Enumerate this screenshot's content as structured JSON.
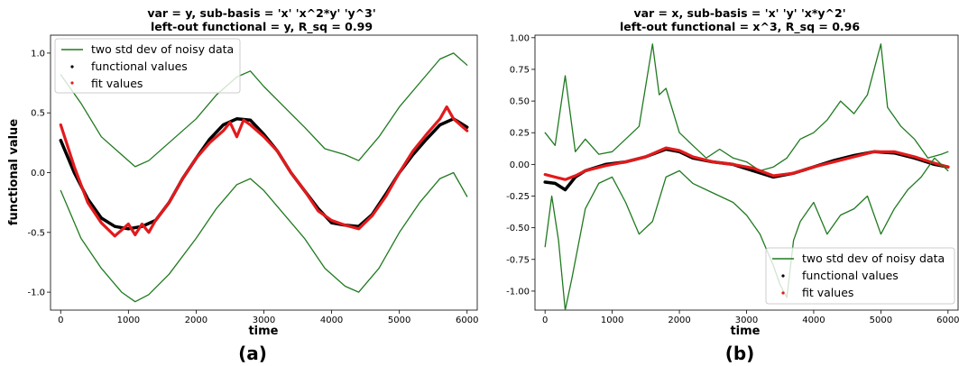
{
  "chart_data": [
    {
      "type": "line",
      "panel_label": "(a)",
      "title": "var = y, sub-basis = 'x' 'x^2*y' 'y^3'",
      "subtitle": "left-out functional = y, R_sq = 0.99",
      "xlabel": "time",
      "ylabel": "functional value",
      "xlim": [
        -150,
        6150
      ],
      "ylim": [
        -1.15,
        1.15
      ],
      "xticks": [
        "0",
        "1000",
        "2000",
        "3000",
        "4000",
        "5000",
        "6000"
      ],
      "yticks": [
        "-1.0",
        "-0.5",
        "0.0",
        "0.5",
        "1.0"
      ],
      "legend_position": "top-left",
      "legend": [
        "two std dev of noisy data",
        "functional values",
        "fit values"
      ],
      "colors": {
        "band": "#1f7a1f",
        "functional": "#000000",
        "fit": "#e31a1c"
      },
      "series": [
        {
          "name": "two std dev of noisy data",
          "role": "upper",
          "x": [
            0,
            300,
            600,
            900,
            1100,
            1300,
            1600,
            2000,
            2300,
            2600,
            2800,
            3000,
            3300,
            3600,
            3900,
            4200,
            4400,
            4700,
            5000,
            5300,
            5600,
            5800,
            6000
          ],
          "y": [
            0.82,
            0.58,
            0.3,
            0.15,
            0.05,
            0.1,
            0.25,
            0.45,
            0.65,
            0.8,
            0.85,
            0.72,
            0.55,
            0.38,
            0.2,
            0.15,
            0.1,
            0.3,
            0.55,
            0.75,
            0.95,
            1.0,
            0.9
          ]
        },
        {
          "name": "functional values",
          "role": "center",
          "x": [
            0,
            200,
            400,
            600,
            800,
            1000,
            1200,
            1400,
            1600,
            1800,
            2000,
            2200,
            2400,
            2600,
            2800,
            3000,
            3200,
            3400,
            3600,
            3800,
            4000,
            4200,
            4400,
            4600,
            4800,
            5000,
            5200,
            5400,
            5600,
            5800,
            6000
          ],
          "y": [
            0.27,
            0.0,
            -0.22,
            -0.38,
            -0.45,
            -0.47,
            -0.45,
            -0.4,
            -0.25,
            -0.05,
            0.12,
            0.28,
            0.4,
            0.45,
            0.44,
            0.32,
            0.18,
            0.0,
            -0.15,
            -0.3,
            -0.42,
            -0.44,
            -0.45,
            -0.35,
            -0.18,
            0.0,
            0.15,
            0.28,
            0.4,
            0.45,
            0.38
          ]
        },
        {
          "name": "fit values",
          "role": "center",
          "x": [
            0,
            200,
            400,
            600,
            800,
            900,
            1000,
            1100,
            1200,
            1300,
            1400,
            1600,
            1800,
            2000,
            2200,
            2400,
            2500,
            2600,
            2700,
            2800,
            3000,
            3200,
            3400,
            3600,
            3800,
            4000,
            4200,
            4400,
            4600,
            4800,
            5000,
            5200,
            5400,
            5600,
            5700,
            5800,
            6000
          ],
          "y": [
            0.4,
            0.05,
            -0.25,
            -0.42,
            -0.53,
            -0.48,
            -0.43,
            -0.52,
            -0.43,
            -0.5,
            -0.4,
            -0.25,
            -0.05,
            0.12,
            0.25,
            0.35,
            0.42,
            0.3,
            0.44,
            0.4,
            0.3,
            0.18,
            0.0,
            -0.15,
            -0.32,
            -0.4,
            -0.44,
            -0.47,
            -0.36,
            -0.2,
            0.0,
            0.18,
            0.32,
            0.45,
            0.55,
            0.45,
            0.35
          ]
        },
        {
          "name": "two std dev of noisy data",
          "role": "lower",
          "x": [
            0,
            300,
            600,
            900,
            1100,
            1300,
            1600,
            2000,
            2300,
            2600,
            2800,
            3000,
            3300,
            3600,
            3900,
            4200,
            4400,
            4700,
            5000,
            5300,
            5600,
            5800,
            6000
          ],
          "y": [
            -0.15,
            -0.55,
            -0.8,
            -1.0,
            -1.08,
            -1.02,
            -0.85,
            -0.55,
            -0.3,
            -0.1,
            -0.05,
            -0.15,
            -0.35,
            -0.55,
            -0.8,
            -0.95,
            -1.0,
            -0.8,
            -0.5,
            -0.25,
            -0.05,
            0.0,
            -0.2
          ]
        }
      ]
    },
    {
      "type": "line",
      "panel_label": "(b)",
      "title": "var = x, sub-basis = 'x' 'y' 'x*y^2'",
      "subtitle": "left-out functional = x^3, R_sq = 0.96",
      "xlabel": "time",
      "ylabel": "",
      "xlim": [
        -150,
        6150
      ],
      "ylim": [
        -1.15,
        1.02
      ],
      "xticks": [
        "0",
        "1000",
        "2000",
        "3000",
        "4000",
        "5000",
        "6000"
      ],
      "yticks": [
        "-1.00",
        "-0.75",
        "-0.50",
        "-0.25",
        "0.00",
        "0.25",
        "0.50",
        "0.75",
        "1.00"
      ],
      "legend_position": "bottom-right",
      "legend": [
        "two std dev of noisy data",
        "functional values",
        "fit values"
      ],
      "colors": {
        "band": "#1f7a1f",
        "functional": "#000000",
        "fit": "#e31a1c"
      },
      "series": [
        {
          "name": "two std dev of noisy data",
          "role": "upper",
          "x": [
            0,
            150,
            300,
            450,
            600,
            800,
            1000,
            1200,
            1400,
            1600,
            1700,
            1800,
            2000,
            2200,
            2400,
            2600,
            2800,
            3000,
            3200,
            3400,
            3600,
            3800,
            4000,
            4200,
            4400,
            4600,
            4800,
            5000,
            5100,
            5300,
            5500,
            5700,
            5900,
            6000
          ],
          "y": [
            0.25,
            0.15,
            0.7,
            0.1,
            0.2,
            0.08,
            0.1,
            0.2,
            0.3,
            0.95,
            0.55,
            0.6,
            0.25,
            0.15,
            0.05,
            0.12,
            0.05,
            0.02,
            -0.05,
            -0.02,
            0.05,
            0.2,
            0.25,
            0.35,
            0.5,
            0.4,
            0.55,
            0.95,
            0.45,
            0.3,
            0.2,
            0.05,
            0.08,
            0.1
          ]
        },
        {
          "name": "functional values",
          "role": "center",
          "x": [
            0,
            150,
            300,
            450,
            600,
            900,
            1200,
            1500,
            1800,
            2000,
            2200,
            2500,
            2800,
            3100,
            3400,
            3700,
            4000,
            4300,
            4600,
            4900,
            5200,
            5500,
            5800,
            6000
          ],
          "y": [
            -0.14,
            -0.15,
            -0.2,
            -0.1,
            -0.05,
            0.0,
            0.02,
            0.06,
            0.12,
            0.1,
            0.05,
            0.02,
            0.0,
            -0.05,
            -0.1,
            -0.07,
            -0.02,
            0.03,
            0.07,
            0.1,
            0.09,
            0.05,
            0.0,
            -0.02
          ]
        },
        {
          "name": "fit values",
          "role": "center",
          "x": [
            0,
            150,
            300,
            450,
            600,
            900,
            1200,
            1500,
            1800,
            2000,
            2200,
            2500,
            2800,
            3100,
            3400,
            3700,
            4000,
            4300,
            4600,
            4900,
            5200,
            5500,
            5800,
            6000
          ],
          "y": [
            -0.08,
            -0.1,
            -0.12,
            -0.09,
            -0.05,
            -0.01,
            0.02,
            0.06,
            0.13,
            0.11,
            0.06,
            0.02,
            0.0,
            -0.03,
            -0.09,
            -0.07,
            -0.02,
            0.02,
            0.06,
            0.1,
            0.1,
            0.06,
            0.01,
            -0.02
          ]
        },
        {
          "name": "two std dev of noisy data",
          "role": "lower",
          "x": [
            0,
            100,
            200,
            300,
            400,
            600,
            800,
            1000,
            1200,
            1400,
            1600,
            1800,
            2000,
            2200,
            2400,
            2600,
            2800,
            3000,
            3200,
            3400,
            3500,
            3600,
            3700,
            3800,
            4000,
            4200,
            4400,
            4600,
            4800,
            5000,
            5200,
            5400,
            5600,
            5800,
            6000
          ],
          "y": [
            -0.65,
            -0.25,
            -0.6,
            -1.15,
            -0.9,
            -0.35,
            -0.15,
            -0.1,
            -0.3,
            -0.55,
            -0.45,
            -0.1,
            -0.05,
            -0.15,
            -0.2,
            -0.25,
            -0.3,
            -0.4,
            -0.55,
            -0.8,
            -0.95,
            -1.05,
            -0.6,
            -0.45,
            -0.3,
            -0.55,
            -0.4,
            -0.35,
            -0.25,
            -0.55,
            -0.35,
            -0.2,
            -0.1,
            0.05,
            -0.05
          ]
        }
      ]
    }
  ]
}
